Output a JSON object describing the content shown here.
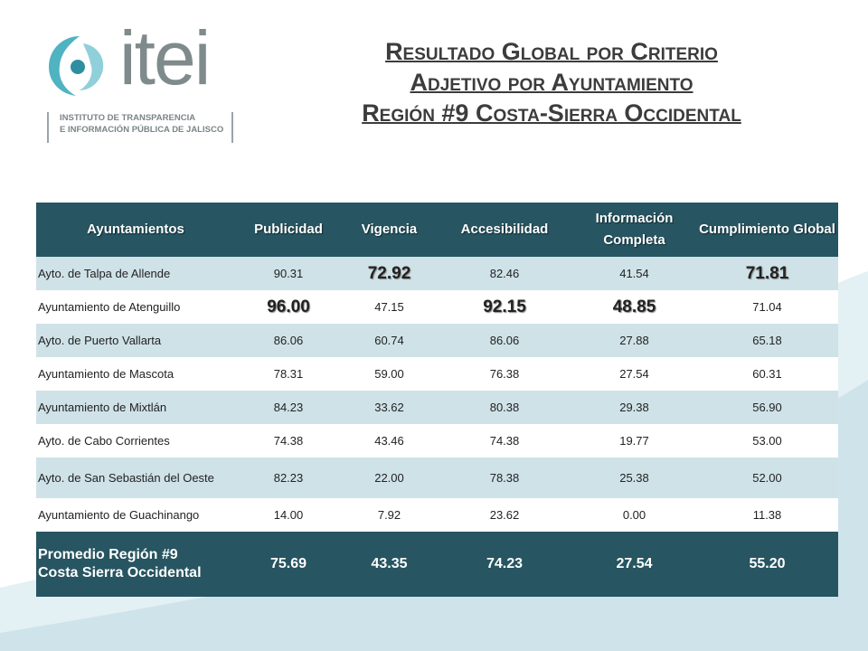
{
  "logo": {
    "word": "itei",
    "subtitle_line1": "INSTITUTO DE TRANSPARENCIA",
    "subtitle_line2": "E INFORMACIÓN PÚBLICA DE JALISCO"
  },
  "title": {
    "line1": "Resultado Global por Criterio",
    "line2": "Adjetivo por Ayuntamiento",
    "line3": "Región #9 Costa-Sierra Occidental"
  },
  "table": {
    "headers": [
      "Ayuntamientos",
      "Publicidad",
      "Vigencia",
      "Accesibilidad",
      "Información Completa",
      "Cumplimiento Global"
    ],
    "rows": [
      {
        "name": "Ayto. de Talpa de Allende",
        "values": [
          "90.31",
          "72.92",
          "82.46",
          "41.54",
          "71.81"
        ]
      },
      {
        "name": "Ayuntamiento de Atenguillo",
        "values": [
          "96.00",
          "47.15",
          "92.15",
          "48.85",
          "71.04"
        ]
      },
      {
        "name": "Ayto. de Puerto Vallarta",
        "values": [
          "86.06",
          "60.74",
          "86.06",
          "27.88",
          "65.18"
        ]
      },
      {
        "name": "Ayuntamiento de Mascota",
        "values": [
          "78.31",
          "59.00",
          "76.38",
          "27.54",
          "60.31"
        ]
      },
      {
        "name": "Ayuntamiento de Mixtlán",
        "values": [
          "84.23",
          "33.62",
          "80.38",
          "29.38",
          "56.90"
        ]
      },
      {
        "name": "Ayto. de Cabo Corrientes",
        "values": [
          "74.38",
          "43.46",
          "74.38",
          "19.77",
          "53.00"
        ]
      },
      {
        "name": "Ayto. de San Sebastián del Oeste",
        "values": [
          "82.23",
          "22.00",
          "78.38",
          "25.38",
          "52.00"
        ]
      },
      {
        "name": "Ayuntamiento de Guachinango",
        "values": [
          "14.00",
          "7.92",
          "23.62",
          "0.00",
          "11.38"
        ]
      }
    ],
    "footer": {
      "name_line1": "Promedio Región #9",
      "name_line2": "Costa Sierra Occidental",
      "values": [
        "75.69",
        "43.35",
        "74.23",
        "27.54",
        "55.20"
      ]
    }
  },
  "colors": {
    "header_bg": "#275561",
    "row_shade": "#cfe2e8",
    "wave": "#d4e8ee"
  }
}
